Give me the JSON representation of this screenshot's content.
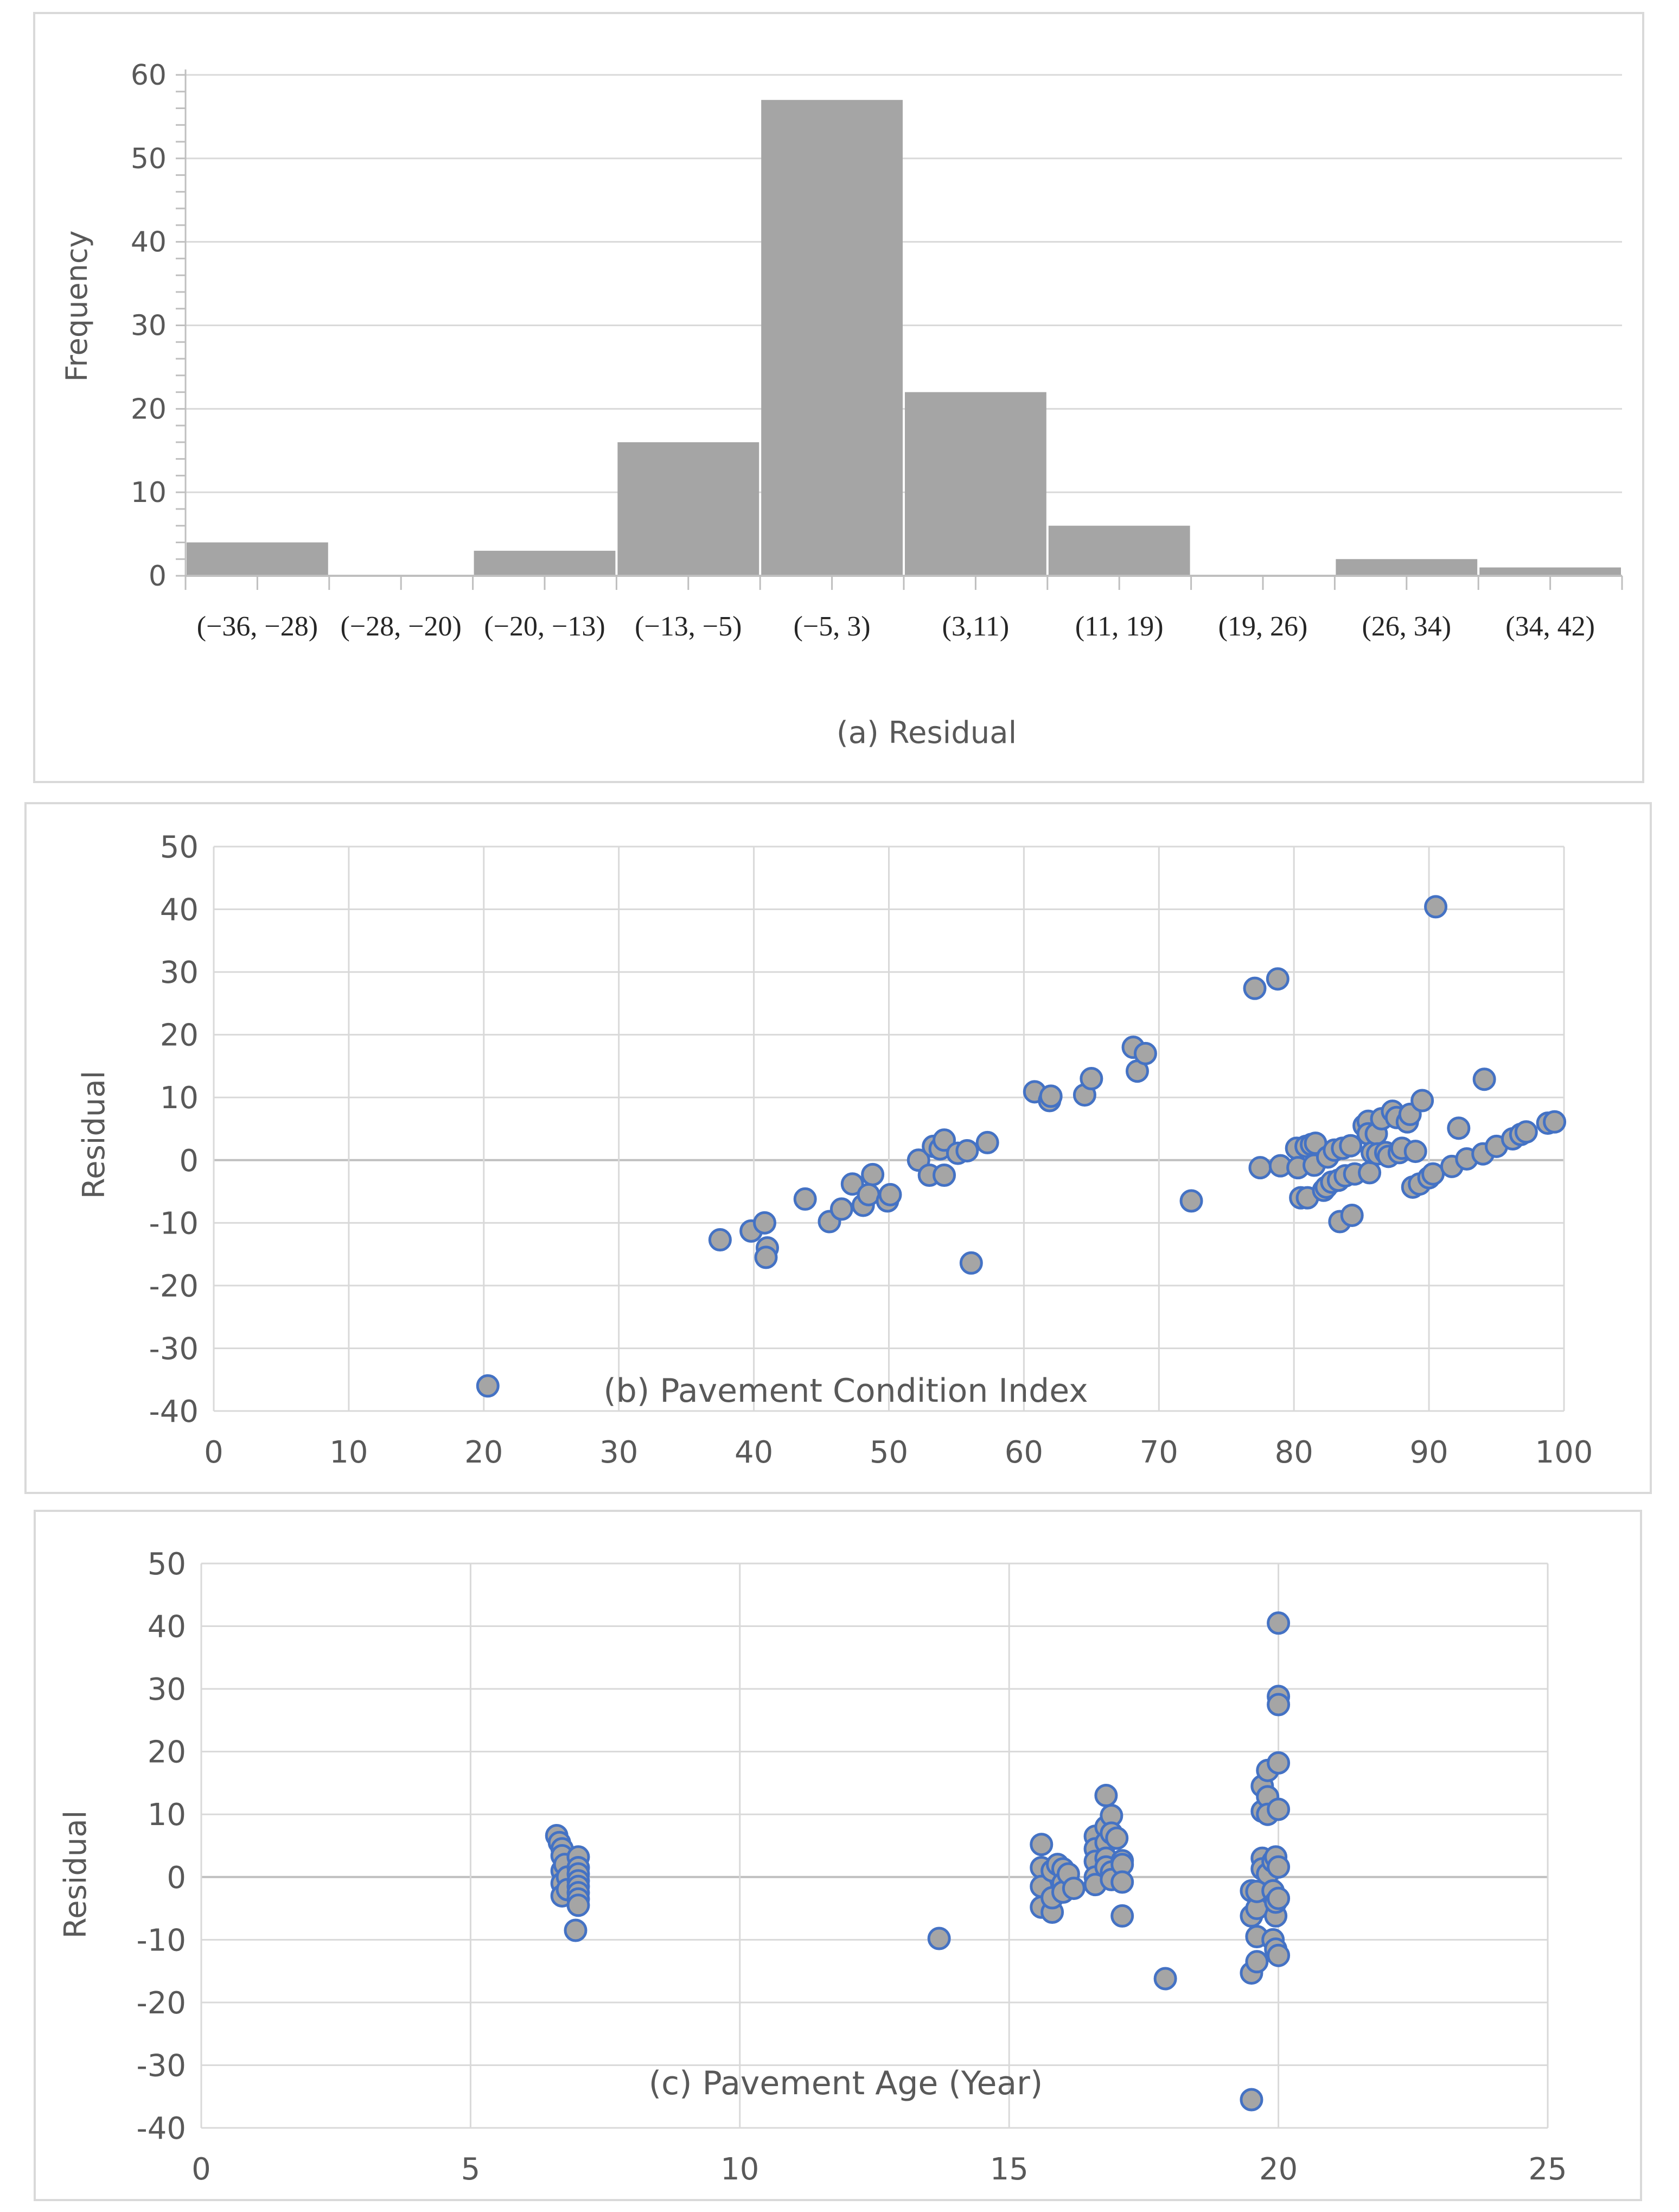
{
  "colors": {
    "bar": "#a5a5a5",
    "marker_fill": "#a5a5a5",
    "marker_stroke": "#4472c4",
    "grid": "#d9d9d9",
    "axis": "#bfbfbf",
    "text": "#595959"
  },
  "chart_data": [
    {
      "type": "bar",
      "id": "histogram",
      "title": "(a) Residual",
      "xlabel": "(a) Residual",
      "ylabel": "Frequency",
      "categories": [
        "(−36, −28)",
        "(−28, −20)",
        "(−20, −13)",
        "(−13, −5)",
        "(−5, 3)",
        "(3,11)",
        "(11, 19)",
        "(19, 26)",
        "(26, 34)",
        "(34, 42)"
      ],
      "values": [
        4,
        0,
        3,
        16,
        57,
        22,
        6,
        0,
        2,
        1
      ],
      "ylim": [
        0,
        60
      ],
      "yticks": [
        0,
        10,
        20,
        30,
        40,
        50,
        60
      ],
      "grid": true
    },
    {
      "type": "scatter",
      "id": "pci",
      "title": "(b) Pavement Condition Index",
      "xlabel": "(b) Pavement Condition Index",
      "ylabel": "Residual",
      "xlim": [
        0,
        100
      ],
      "ylim": [
        -40,
        50
      ],
      "xticks": [
        0,
        10,
        20,
        30,
        40,
        50,
        60,
        70,
        80,
        90,
        100
      ],
      "yticks": [
        -40,
        -30,
        -20,
        -10,
        0,
        10,
        20,
        30,
        40,
        50
      ],
      "grid": true,
      "points": [
        [
          20.3,
          -36
        ],
        [
          37.5,
          -12.7
        ],
        [
          39.8,
          -11.3
        ],
        [
          40.8,
          -10
        ],
        [
          41,
          -14
        ],
        [
          40.9,
          -15.5
        ],
        [
          43.8,
          -6.2
        ],
        [
          45.6,
          -9.8
        ],
        [
          46.5,
          -7.8
        ],
        [
          47.3,
          -3.8
        ],
        [
          48.1,
          -7.2
        ],
        [
          48.8,
          -2.3
        ],
        [
          48.5,
          -5.5
        ],
        [
          49.9,
          -6.5
        ],
        [
          50.1,
          -5.5
        ],
        [
          52.2,
          0
        ],
        [
          53,
          -2.4
        ],
        [
          53.3,
          2.2
        ],
        [
          53.8,
          1.8
        ],
        [
          54.1,
          3.2
        ],
        [
          54.1,
          -2.4
        ],
        [
          55.1,
          1.1
        ],
        [
          55.8,
          1.5
        ],
        [
          56.1,
          -16.4
        ],
        [
          57.3,
          2.8
        ],
        [
          60.8,
          10.9
        ],
        [
          61.9,
          9.5
        ],
        [
          62,
          10.2
        ],
        [
          64.5,
          10.4
        ],
        [
          65,
          13
        ],
        [
          68.1,
          18
        ],
        [
          68.4,
          14.2
        ],
        [
          69,
          17
        ],
        [
          72.4,
          -6.5
        ],
        [
          77.1,
          27.4
        ],
        [
          77.5,
          -1.2
        ],
        [
          78.8,
          28.9
        ],
        [
          79,
          -0.9
        ],
        [
          80.2,
          1.9
        ],
        [
          80.3,
          -1.2
        ],
        [
          80.5,
          -6
        ],
        [
          80.9,
          2.2
        ],
        [
          81,
          -6
        ],
        [
          81.3,
          2.5
        ],
        [
          81.5,
          -0.8
        ],
        [
          81.6,
          2.7
        ],
        [
          82.2,
          -4.8
        ],
        [
          82.4,
          -4.3
        ],
        [
          82.5,
          0.5
        ],
        [
          82.8,
          -3.5
        ],
        [
          83,
          1.6
        ],
        [
          83.3,
          -3.2
        ],
        [
          83.4,
          -9.8
        ],
        [
          83.6,
          1.9
        ],
        [
          83.8,
          -2.5
        ],
        [
          84.2,
          2.3
        ],
        [
          84.3,
          -8.8
        ],
        [
          84.5,
          -2.2
        ],
        [
          85.2,
          5.5
        ],
        [
          85.5,
          6.2
        ],
        [
          85.5,
          4.2
        ],
        [
          85.6,
          -2
        ],
        [
          85.8,
          1.2
        ],
        [
          86.1,
          4.2
        ],
        [
          86.2,
          1
        ],
        [
          86.5,
          6.6
        ],
        [
          86.8,
          1.2
        ],
        [
          87,
          0.6
        ],
        [
          87.3,
          7.8
        ],
        [
          87.6,
          6.8
        ],
        [
          87.8,
          1.2
        ],
        [
          88,
          1.9
        ],
        [
          88.4,
          6.1
        ],
        [
          88.6,
          7.3
        ],
        [
          88.8,
          -4.3
        ],
        [
          89,
          1.4
        ],
        [
          89.3,
          -3.8
        ],
        [
          89.5,
          9.5
        ],
        [
          90,
          -2.8
        ],
        [
          90.3,
          -2.2
        ],
        [
          90.5,
          40.4
        ],
        [
          91.7,
          -1
        ],
        [
          92.2,
          5.1
        ],
        [
          92.8,
          0.2
        ],
        [
          94,
          1
        ],
        [
          94.1,
          12.9
        ],
        [
          95,
          2.2
        ],
        [
          96.2,
          3.4
        ],
        [
          96.8,
          4.1
        ],
        [
          97.2,
          4.5
        ],
        [
          98.8,
          5.9
        ],
        [
          99.3,
          6.1
        ]
      ]
    },
    {
      "type": "scatter",
      "id": "age",
      "title": "(c) Pavement Age (Year)",
      "xlabel": "(c) Pavement Age (Year)",
      "ylabel": "Residual",
      "xlim": [
        0,
        25
      ],
      "ylim": [
        -40,
        50
      ],
      "xticks": [
        0,
        5,
        10,
        15,
        20,
        25
      ],
      "yticks": [
        -40,
        -30,
        -20,
        -10,
        0,
        10,
        20,
        30,
        40,
        50
      ],
      "grid": true,
      "points": [
        [
          6.6,
          6.6
        ],
        [
          6.65,
          5.5
        ],
        [
          6.7,
          4.5
        ],
        [
          6.7,
          3.4
        ],
        [
          6.7,
          1
        ],
        [
          6.7,
          -1
        ],
        [
          6.7,
          -3
        ],
        [
          6.75,
          2
        ],
        [
          6.8,
          0
        ],
        [
          6.8,
          -2
        ],
        [
          7,
          3.2
        ],
        [
          7,
          1.5
        ],
        [
          7,
          0.5
        ],
        [
          7,
          -0.6
        ],
        [
          7,
          -1.5
        ],
        [
          7,
          -2.5
        ],
        [
          7,
          -3.5
        ],
        [
          7,
          -4.5
        ],
        [
          6.95,
          -8.5
        ],
        [
          13.7,
          -9.8
        ],
        [
          15.6,
          5.2
        ],
        [
          15.6,
          1.5
        ],
        [
          15.6,
          -1.5
        ],
        [
          15.6,
          -4.8
        ],
        [
          15.8,
          -5.6
        ],
        [
          15.8,
          -3.3
        ],
        [
          15.8,
          1
        ],
        [
          15.9,
          2
        ],
        [
          16,
          1.3
        ],
        [
          16,
          -1
        ],
        [
          16,
          -2.4
        ],
        [
          16.1,
          0.5
        ],
        [
          16.2,
          -1.8
        ],
        [
          16.6,
          6.5
        ],
        [
          16.6,
          4.5
        ],
        [
          16.6,
          2.5
        ],
        [
          16.6,
          0
        ],
        [
          16.6,
          -1.2
        ],
        [
          16.8,
          13
        ],
        [
          16.8,
          8
        ],
        [
          16.8,
          5.5
        ],
        [
          16.8,
          3
        ],
        [
          16.8,
          1.6
        ],
        [
          16.9,
          9.8
        ],
        [
          16.9,
          7
        ],
        [
          16.9,
          0.8
        ],
        [
          16.9,
          -0.4
        ],
        [
          17,
          6.2
        ],
        [
          17.1,
          2.6
        ],
        [
          17.1,
          2
        ],
        [
          17.1,
          -0.8
        ],
        [
          17.1,
          -6.2
        ],
        [
          17.9,
          -16.2
        ],
        [
          19.5,
          -35.5
        ],
        [
          19.5,
          -15.3
        ],
        [
          19.5,
          -6.2
        ],
        [
          19.5,
          -2.2
        ],
        [
          19.6,
          -13.5
        ],
        [
          19.6,
          -9.5
        ],
        [
          19.6,
          -5
        ],
        [
          19.6,
          -2.3
        ],
        [
          19.7,
          14.5
        ],
        [
          19.7,
          10.5
        ],
        [
          19.7,
          3
        ],
        [
          19.7,
          1.3
        ],
        [
          19.8,
          17
        ],
        [
          19.8,
          12.8
        ],
        [
          19.8,
          10
        ],
        [
          19.8,
          0.5
        ],
        [
          19.9,
          2.5
        ],
        [
          19.9,
          -2.2
        ],
        [
          19.9,
          -10
        ],
        [
          19.95,
          -11.5
        ],
        [
          19.95,
          -6.2
        ],
        [
          19.95,
          -4
        ],
        [
          19.95,
          3.2
        ],
        [
          20,
          40.5
        ],
        [
          20,
          28.8
        ],
        [
          20,
          27.5
        ],
        [
          20,
          18.2
        ],
        [
          20,
          10.8
        ],
        [
          20,
          1.6
        ],
        [
          20,
          -3.4
        ],
        [
          20,
          -12.5
        ]
      ]
    }
  ]
}
